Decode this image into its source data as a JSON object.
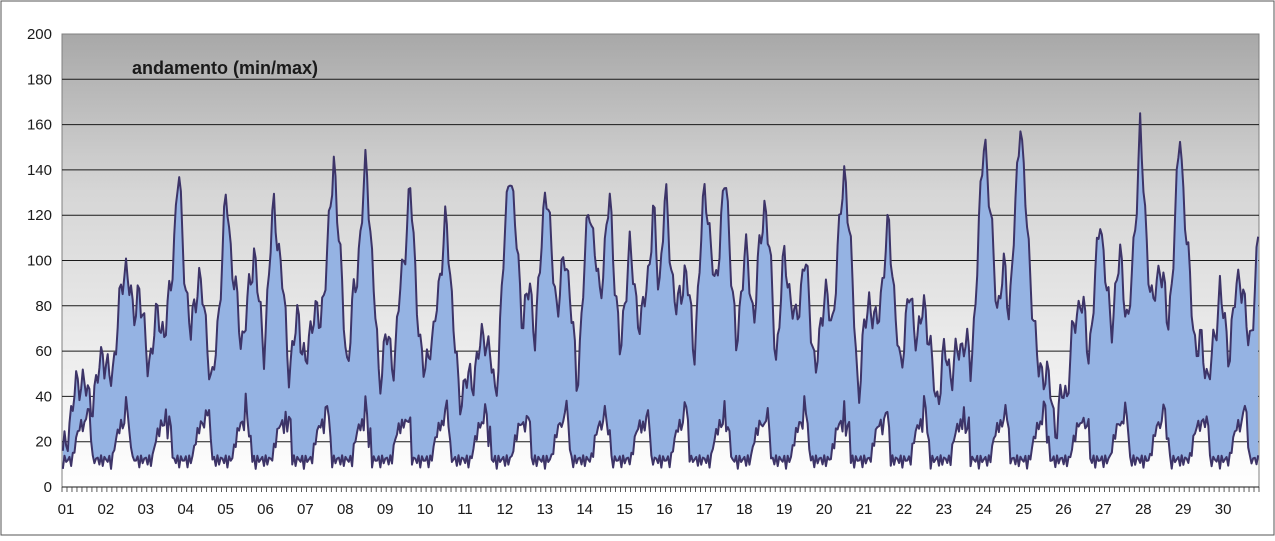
{
  "chart_data": {
    "type": "area",
    "title": "andamento (min/max)",
    "xlabel": "",
    "ylabel": "",
    "ylim": [
      0,
      200
    ],
    "yticks": [
      0,
      20,
      40,
      60,
      80,
      100,
      120,
      140,
      160,
      180,
      200
    ],
    "grid": true,
    "legend": "none",
    "categories": [
      "01",
      "02",
      "03",
      "04",
      "05",
      "06",
      "07",
      "08",
      "09",
      "10",
      "11",
      "12",
      "13",
      "14",
      "15",
      "16",
      "17",
      "18",
      "19",
      "20",
      "21",
      "22",
      "23",
      "24",
      "25",
      "26",
      "27",
      "28",
      "29",
      "30"
    ],
    "points_per_day": 24,
    "series": [
      {
        "role": "max",
        "peaks": [
          [
            [
              0.4,
              33
            ],
            [
              1.0,
              62
            ],
            [
              1.6,
              101
            ],
            [
              2.2,
              60
            ]
          ],
          [
            [
              0.4,
              92
            ],
            [
              0.9,
              77
            ],
            [
              1.4,
              140
            ],
            [
              1.9,
              40
            ]
          ],
          [
            [
              0.4,
              93
            ],
            [
              1.1,
              130
            ],
            [
              1.6,
              65
            ],
            [
              2.0,
              60
            ]
          ],
          [
            [
              0.3,
              107
            ],
            [
              0.8,
              125
            ],
            [
              1.4,
              78
            ],
            [
              1.8,
              50
            ]
          ],
          [
            [
              0.3,
              80
            ],
            [
              0.8,
              147
            ],
            [
              1.4,
              97
            ],
            [
              1.7,
              60
            ]
          ],
          [
            [
              0.1,
              143
            ],
            [
              0.6,
              68
            ],
            [
              1.2,
              132
            ],
            [
              1.7,
              65
            ]
          ],
          [
            [
              0.0,
              55
            ],
            [
              0.6,
              117
            ],
            [
              1.1,
              50
            ],
            [
              1.6,
              53
            ]
          ],
          [
            [
              0.1,
              68
            ],
            [
              0.7,
              145
            ],
            [
              1.2,
              90
            ],
            [
              1.7,
              60
            ]
          ],
          [
            [
              0.1,
              137
            ],
            [
              0.6,
              104
            ],
            [
              1.2,
              128
            ],
            [
              1.7,
              70
            ]
          ],
          [
            [
              0.2,
              128
            ],
            [
              0.7,
              106
            ],
            [
              1.3,
              122
            ],
            [
              1.8,
              60
            ]
          ],
          [
            [
              0.1,
              130
            ],
            [
              0.6,
              98
            ],
            [
              1.1,
              137
            ],
            [
              1.6,
              97
            ]
          ],
          [
            [
              0.1,
              137
            ],
            [
              0.6,
              108
            ],
            [
              1.1,
              128
            ],
            [
              1.6,
              87
            ]
          ],
          [
            [
              0.1,
              105
            ],
            [
              0.6,
              100
            ],
            [
              1.1,
              90
            ],
            [
              1.6,
              80
            ]
          ],
          [
            [
              0.1,
              142
            ],
            [
              0.7,
              85
            ],
            [
              1.2,
              117
            ],
            [
              1.7,
              85
            ]
          ],
          [
            [
              0.0,
              52
            ],
            [
              0.6,
              80
            ],
            [
              1.1,
              60
            ],
            [
              1.6,
              66
            ]
          ],
          [
            [
              0.0,
              60
            ],
            [
              0.6,
              160
            ],
            [
              1.1,
              97
            ],
            [
              1.6,
              60
            ]
          ],
          [
            [
              0.0,
              166
            ],
            [
              0.6,
              52
            ],
            [
              1.1,
              44
            ],
            [
              1.6,
              60
            ]
          ],
          [
            [
              0.0,
              84
            ],
            [
              0.5,
              122
            ],
            [
              1.0,
              101
            ],
            [
              1.5,
              158
            ]
          ],
          [
            [
              0.0,
              103
            ],
            [
              0.5,
              100
            ],
            [
              1.0,
              158
            ],
            [
              1.5,
              63
            ]
          ],
          [
            [
              0.0,
              50
            ],
            [
              0.5,
              89
            ],
            [
              1.0,
              95
            ],
            [
              1.5,
              118
            ]
          ]
        ]
      },
      {
        "role": "min",
        "range": [
          0,
          60
        ]
      }
    ]
  }
}
